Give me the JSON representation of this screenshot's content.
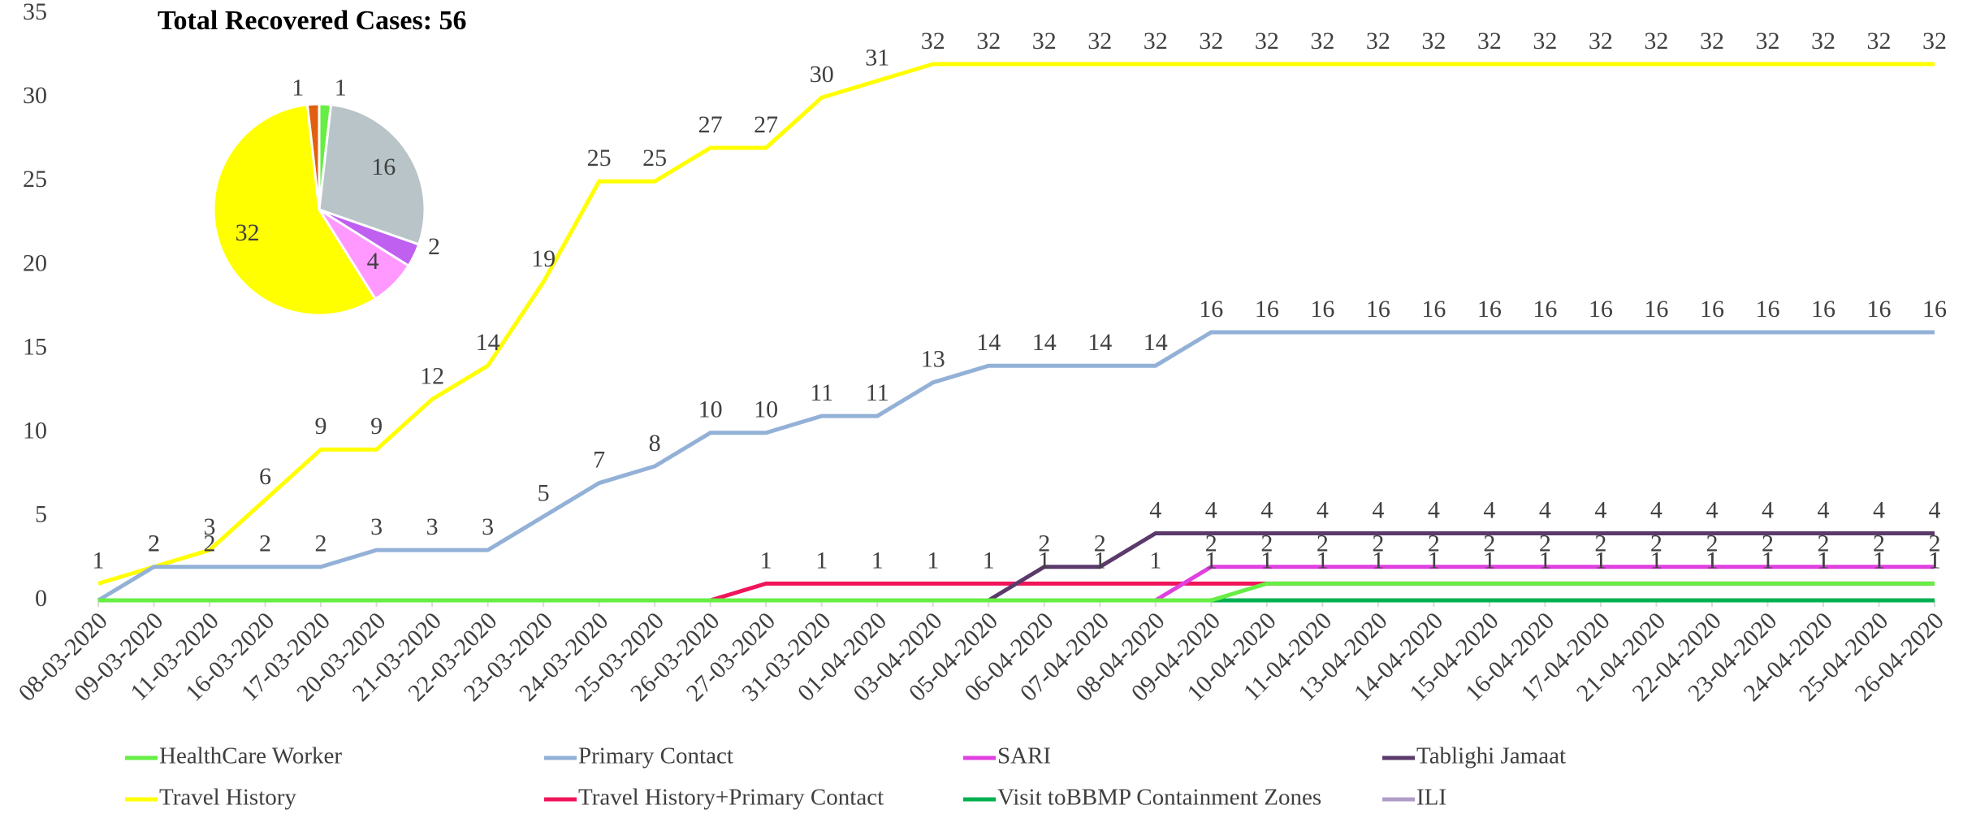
{
  "chart_data": [
    {
      "type": "line",
      "categories": [
        "08-03-2020",
        "09-03-2020",
        "11-03-2020",
        "16-03-2020",
        "17-03-2020",
        "20-03-2020",
        "21-03-2020",
        "22-03-2020",
        "23-03-2020",
        "24-03-2020",
        "25-03-2020",
        "26-03-2020",
        "27-03-2020",
        "31-03-2020",
        "01-04-2020",
        "03-04-2020",
        "05-04-2020",
        "06-04-2020",
        "07-04-2020",
        "08-04-2020",
        "09-04-2020",
        "10-04-2020",
        "11-04-2020",
        "13-04-2020",
        "14-04-2020",
        "15-04-2020",
        "16-04-2020",
        "17-04-2020",
        "21-04-2020",
        "22-04-2020",
        "23-04-2020",
        "24-04-2020",
        "25-04-2020",
        "26-04-2020"
      ],
      "ylim": [
        0,
        35
      ],
      "yticks": [
        0,
        5,
        10,
        15,
        20,
        25,
        30,
        35
      ],
      "series": [
        {
          "name": "HealthCare Worker",
          "color": "#66ee44",
          "values": [
            0,
            0,
            0,
            0,
            0,
            0,
            0,
            0,
            0,
            0,
            0,
            0,
            0,
            0,
            0,
            0,
            0,
            0,
            0,
            0,
            0,
            1,
            1,
            1,
            1,
            1,
            1,
            1,
            1,
            1,
            1,
            1,
            1,
            1
          ]
        },
        {
          "name": "Primary Contact",
          "color": "#93b1d7",
          "values": [
            0,
            2,
            2,
            2,
            2,
            3,
            3,
            3,
            5,
            7,
            8,
            10,
            10,
            11,
            11,
            13,
            14,
            14,
            14,
            14,
            16,
            16,
            16,
            16,
            16,
            16,
            16,
            16,
            16,
            16,
            16,
            16,
            16,
            16
          ]
        },
        {
          "name": "SARI",
          "color": "#e040e0",
          "values": [
            0,
            0,
            0,
            0,
            0,
            0,
            0,
            0,
            0,
            0,
            0,
            0,
            0,
            0,
            0,
            0,
            0,
            0,
            0,
            0,
            2,
            2,
            2,
            2,
            2,
            2,
            2,
            2,
            2,
            2,
            2,
            2,
            2,
            2
          ]
        },
        {
          "name": "Tablighi Jamaat",
          "color": "#5b3a6b",
          "values": [
            0,
            0,
            0,
            0,
            0,
            0,
            0,
            0,
            0,
            0,
            0,
            0,
            0,
            0,
            0,
            0,
            0,
            2,
            2,
            4,
            4,
            4,
            4,
            4,
            4,
            4,
            4,
            4,
            4,
            4,
            4,
            4,
            4,
            4
          ]
        },
        {
          "name": "Travel History",
          "color": "#ffff00",
          "values": [
            1,
            2,
            3,
            6,
            9,
            9,
            12,
            14,
            19,
            25,
            25,
            27,
            27,
            30,
            31,
            32,
            32,
            32,
            32,
            32,
            32,
            32,
            32,
            32,
            32,
            32,
            32,
            32,
            32,
            32,
            32,
            32,
            32,
            32
          ]
        },
        {
          "name": "Travel History+Primary Contact",
          "color": "#f0145a",
          "values": [
            0,
            0,
            0,
            0,
            0,
            0,
            0,
            0,
            0,
            0,
            0,
            0,
            1,
            1,
            1,
            1,
            1,
            1,
            1,
            1,
            1,
            1,
            1,
            1,
            1,
            1,
            1,
            1,
            1,
            1,
            1,
            1,
            1,
            1
          ]
        },
        {
          "name": "Visit toBBMP Containment Zones",
          "color": "#00b050",
          "values": [
            0,
            0,
            0,
            0,
            0,
            0,
            0,
            0,
            0,
            0,
            0,
            0,
            0,
            0,
            0,
            0,
            0,
            0,
            0,
            0,
            0,
            0,
            0,
            0,
            0,
            0,
            0,
            0,
            0,
            0,
            0,
            0,
            0,
            0
          ]
        },
        {
          "name": "ILI",
          "color": "#b09cc8",
          "values": [
            0,
            0,
            0,
            0,
            0,
            0,
            0,
            0,
            0,
            0,
            0,
            0,
            0,
            0,
            0,
            0,
            0,
            0,
            0,
            0,
            0,
            0,
            0,
            0,
            0,
            0,
            0,
            0,
            0,
            0,
            0,
            0,
            0,
            0
          ]
        }
      ]
    },
    {
      "type": "pie",
      "title": "Total Recovered Cases: 56",
      "values": [
        1,
        16,
        2,
        4,
        32,
        1
      ],
      "colors": [
        "#66ee44",
        "#b8c4c8",
        "#c060f0",
        "#ff99ff",
        "#ffff00",
        "#e06010"
      ]
    }
  ]
}
